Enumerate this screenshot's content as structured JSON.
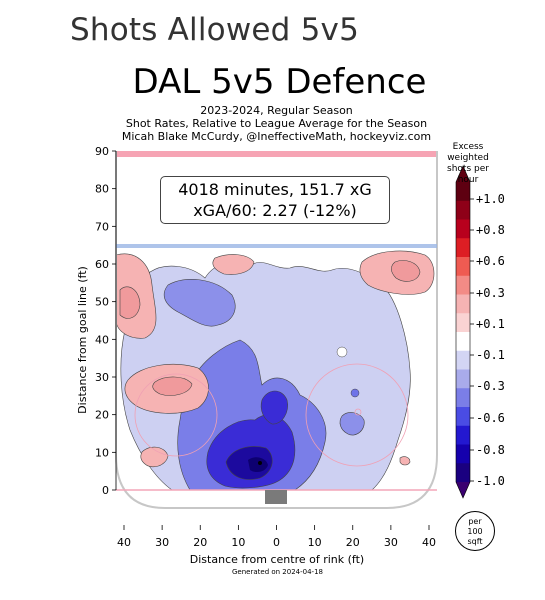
{
  "page_title": "Shots Allowed 5v5",
  "chart_data": {
    "type": "heatmap",
    "title": "DAL 5v5 Defence",
    "subtitle_lines": [
      "2023-2024, Regular Season",
      "Shot Rates, Relative to League Average for the Season",
      "Micah Blake McCurdy, @IneffectiveMath, hockeyviz.com"
    ],
    "stats_box": [
      "4018 minutes, 151.7 xG",
      "xGA/60: 2.27 (-12%)"
    ],
    "xlabel": "Distance from centre of rink (ft)",
    "ylabel": "Distance from goal line (ft)",
    "x_ticks": [
      "40",
      "30",
      "20",
      "10",
      "0",
      "10",
      "20",
      "30",
      "40"
    ],
    "y_ticks": [
      0,
      10,
      20,
      30,
      40,
      50,
      60,
      70,
      80,
      90
    ],
    "xlim": [
      -42.5,
      42.5
    ],
    "ylim": [
      -11,
      90
    ],
    "colorbar": {
      "title": "Excess weighted shots per hour",
      "ticks": [
        "+1.0",
        "+0.8",
        "+0.6",
        "+0.3",
        "+0.1",
        "-0.1",
        "-0.3",
        "-0.6",
        "-0.8",
        "-1.0"
      ],
      "unit": "per 100 sqft"
    },
    "footer": "Generated on 2024-04-18"
  },
  "colors": {
    "deep_red": "#7a0010",
    "red": "#e8483d",
    "light_red": "#f6b3b3",
    "light_blue": "#cdd0f2",
    "blue": "#6e73e8",
    "deep_blue": "#1c06b4",
    "dark_blue": "#0b0078",
    "zone_line": "#9bb6e6",
    "goal_line": "#f3a6b8"
  }
}
